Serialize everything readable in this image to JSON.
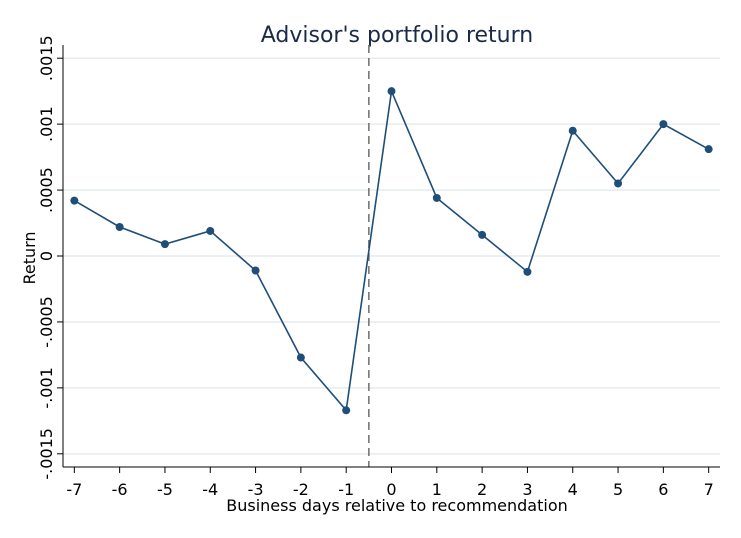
{
  "chart_data": {
    "type": "line",
    "title": "Advisor's portfolio return",
    "xlabel": "Business days relative to recommendation",
    "ylabel": "Return",
    "x": [
      -7,
      -6,
      -5,
      -4,
      -3,
      -2,
      -1,
      0,
      1,
      2,
      3,
      4,
      5,
      6,
      7
    ],
    "series": [
      {
        "values": [
          0.00042,
          0.00022,
          9e-05,
          0.00019,
          -0.00011,
          -0.00077,
          -0.00117,
          0.00125,
          0.00044,
          0.00016,
          -0.00012,
          0.00095,
          0.00055,
          0.001,
          0.00081
        ],
        "color": "#1f4e79"
      }
    ],
    "xticks": [
      "-7",
      "-6",
      "-5",
      "-4",
      "-3",
      "-2",
      "-1",
      "0",
      "1",
      "2",
      "3",
      "4",
      "5",
      "6",
      "7"
    ],
    "yticks": [
      {
        "value": -0.0015,
        "label": "-.0015"
      },
      {
        "value": -0.001,
        "label": "-.001"
      },
      {
        "value": -0.0005,
        "label": "-.0005"
      },
      {
        "value": 0,
        "label": "0"
      },
      {
        "value": 0.0005,
        "label": ".0005"
      },
      {
        "value": 0.001,
        "label": ".001"
      },
      {
        "value": 0.0015,
        "label": ".0015"
      }
    ],
    "xlim": [
      -7.25,
      7.25
    ],
    "ylim": [
      -0.0016,
      0.0016
    ],
    "grid": true,
    "reference_line": {
      "x": -0.5,
      "style": "dashed",
      "color": "#777777"
    }
  }
}
